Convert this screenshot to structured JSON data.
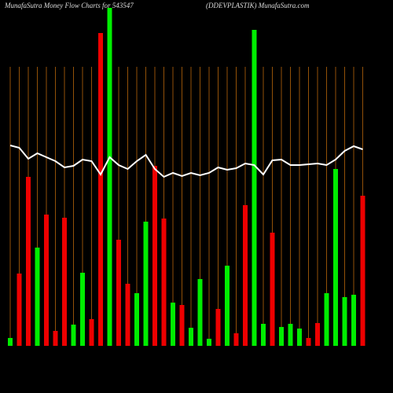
{
  "chart_data": {
    "type": "bar",
    "title": "MunafaSutra  Money Flow  Charts for 543547",
    "subtitle": "(DDEVPLASTIK) MunafaSutra.com",
    "ylim": [
      0,
      440
    ],
    "values": [
      10,
      92,
      215,
      125,
      167,
      19,
      163,
      27,
      93,
      34,
      398,
      430,
      135,
      79,
      67,
      158,
      229,
      162,
      55,
      52,
      23,
      85,
      9,
      47,
      102,
      16,
      179,
      402,
      28,
      144,
      24,
      28,
      22,
      10,
      29,
      67,
      225,
      62,
      65,
      191
    ],
    "colors": [
      "#00ee00",
      "#ee0000",
      "#ee0000",
      "#00ee00",
      "#ee0000",
      "#ee0000",
      "#ee0000",
      "#00ee00",
      "#00ee00",
      "#ee0000",
      "#ee0000",
      "#00ee00",
      "#ee0000",
      "#ee0000",
      "#00ee00",
      "#00ee00",
      "#ee0000",
      "#ee0000",
      "#00ee00",
      "#ee0000",
      "#00ee00",
      "#00ee00",
      "#00ee00",
      "#ee0000",
      "#00ee00",
      "#ee0000",
      "#ee0000",
      "#00ee00",
      "#00ee00",
      "#ee0000",
      "#00ee00",
      "#00ee00",
      "#00ee00",
      "#ee0000",
      "#ee0000",
      "#00ee00",
      "#00ee00",
      "#00ee00",
      "#00ee00",
      "#ee0000"
    ],
    "line": {
      "color": "#ffffff",
      "values": [
        255,
        252,
        238,
        245,
        240,
        235,
        227,
        229,
        237,
        235,
        218,
        240,
        230,
        225,
        235,
        243,
        225,
        215,
        220,
        216,
        220,
        217,
        220,
        227,
        224,
        226,
        232,
        230,
        218,
        236,
        237,
        230,
        230,
        231,
        232,
        230,
        237,
        248,
        254,
        250
      ]
    },
    "grid_color": "#b8660b"
  }
}
